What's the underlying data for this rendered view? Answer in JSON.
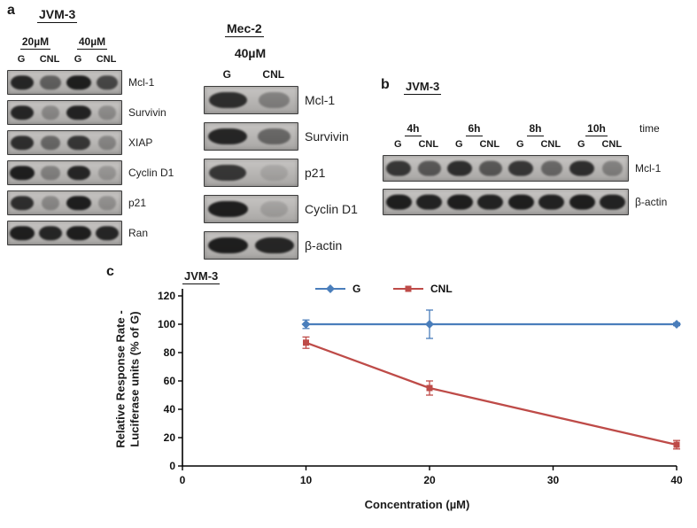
{
  "figure": {
    "panel_a": {
      "label": "a",
      "cell_line": "JVM-3",
      "dose_groups": [
        "20µM",
        "40µM"
      ],
      "lane_labels": [
        "G",
        "CNL",
        "G",
        "CNL"
      ],
      "rows": [
        {
          "label": "Mcl-1",
          "bands": [
            0.9,
            0.55,
            0.95,
            0.7
          ]
        },
        {
          "label": "Survivin",
          "bands": [
            0.9,
            0.3,
            0.92,
            0.28
          ]
        },
        {
          "label": "XIAP",
          "bands": [
            0.85,
            0.5,
            0.8,
            0.32
          ]
        },
        {
          "label": "Cyclin D1",
          "bands": [
            0.95,
            0.35,
            0.9,
            0.22
          ]
        },
        {
          "label": "p21",
          "bands": [
            0.85,
            0.3,
            0.95,
            0.25
          ]
        },
        {
          "label": "Ran",
          "bands": [
            0.95,
            0.9,
            0.95,
            0.9
          ]
        }
      ]
    },
    "panel_mec2": {
      "cell_line": "Mec-2",
      "dose": "40µM",
      "lane_labels": [
        "G",
        "CNL"
      ],
      "rows": [
        {
          "label": "Mcl-1",
          "bands": [
            0.85,
            0.35
          ]
        },
        {
          "label": "Survivin",
          "bands": [
            0.9,
            0.5
          ]
        },
        {
          "label": "p21",
          "bands": [
            0.8,
            0.12
          ]
        },
        {
          "label": "Cyclin D1",
          "bands": [
            0.95,
            0.15
          ]
        },
        {
          "label": "β-actin",
          "bands": [
            0.95,
            0.9
          ]
        }
      ]
    },
    "panel_b": {
      "label": "b",
      "cell_line": "JVM-3",
      "time_points": [
        "4h",
        "6h",
        "8h",
        "10h"
      ],
      "time_axis_label": "time",
      "lane_labels": [
        "G",
        "CNL",
        "G",
        "CNL",
        "G",
        "CNL",
        "G",
        "CNL"
      ],
      "rows": [
        {
          "label": "Mcl-1",
          "bands": [
            0.8,
            0.6,
            0.85,
            0.6,
            0.8,
            0.5,
            0.85,
            0.35
          ]
        },
        {
          "label": "β-actin",
          "bands": [
            0.95,
            0.92,
            0.95,
            0.92,
            0.95,
            0.92,
            0.95,
            0.92
          ]
        }
      ]
    },
    "panel_c": {
      "label": "c",
      "cell_line": "JVM-3"
    }
  },
  "chart_data": {
    "type": "line",
    "title": "",
    "x": [
      10,
      20,
      40
    ],
    "series": [
      {
        "name": "G",
        "color": "#4a7ebb",
        "marker": "diamond",
        "values": [
          100,
          100,
          100
        ],
        "yerr": [
          3,
          10,
          1
        ]
      },
      {
        "name": "CNL",
        "color": "#be4b48",
        "marker": "square",
        "values": [
          87,
          55,
          15
        ],
        "yerr": [
          4,
          5,
          3
        ]
      }
    ],
    "xlabel": "Concentration (µM)",
    "ylabel": "Relative Response Rate - Luciferase units (% of G)",
    "xlim": [
      0,
      40
    ],
    "ylim": [
      0,
      120
    ],
    "xticks": [
      0,
      10,
      20,
      30,
      40
    ],
    "yticks": [
      0,
      20,
      40,
      60,
      80,
      100,
      120
    ],
    "grid": false,
    "legend_position": "top"
  }
}
